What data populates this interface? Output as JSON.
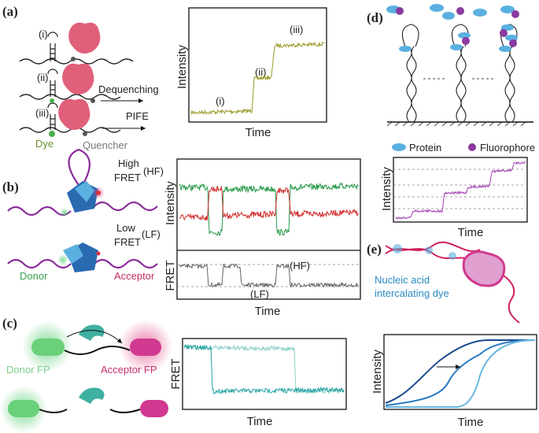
{
  "panel_a": {
    "label": "(a)",
    "states": [
      "(i)",
      "(ii)",
      "(iii)"
    ],
    "dequenching": "Dequenching",
    "pife": "PIFE",
    "dye": "Dye",
    "quencher": "Quencher",
    "plot": {
      "y_label": "Intensity",
      "x_label": "Time",
      "steps": [
        "(i)",
        "(ii)",
        "(iii)"
      ]
    }
  },
  "panel_b": {
    "label": "(b)",
    "high": [
      "High",
      "FRET",
      "(HF)"
    ],
    "low": [
      "Low",
      "FRET",
      "(LF)"
    ],
    "donor": "Donor",
    "acceptor": "Acceptor",
    "plot": {
      "y_label_top": "Intensity",
      "y_label_bottom": "FRET",
      "hf": "(HF)",
      "lf": "(LF)",
      "x_label": "Time"
    }
  },
  "panel_c": {
    "label": "(c)",
    "donor": "Donor FP",
    "acceptor": "Acceptor FP",
    "plot": {
      "y_label": "FRET",
      "x_label": "Time"
    }
  },
  "panel_d": {
    "label": "(d)",
    "legend": [
      "Protein",
      "Fluorophore"
    ],
    "plot": {
      "y_label": "Intensity",
      "x_label": "Time"
    }
  },
  "panel_e": {
    "label": "(e)",
    "dye": [
      "Nucleic acid",
      "intercalating dye"
    ],
    "plot": {
      "y_label": "Intensity",
      "x_label": "Time"
    }
  }
}
